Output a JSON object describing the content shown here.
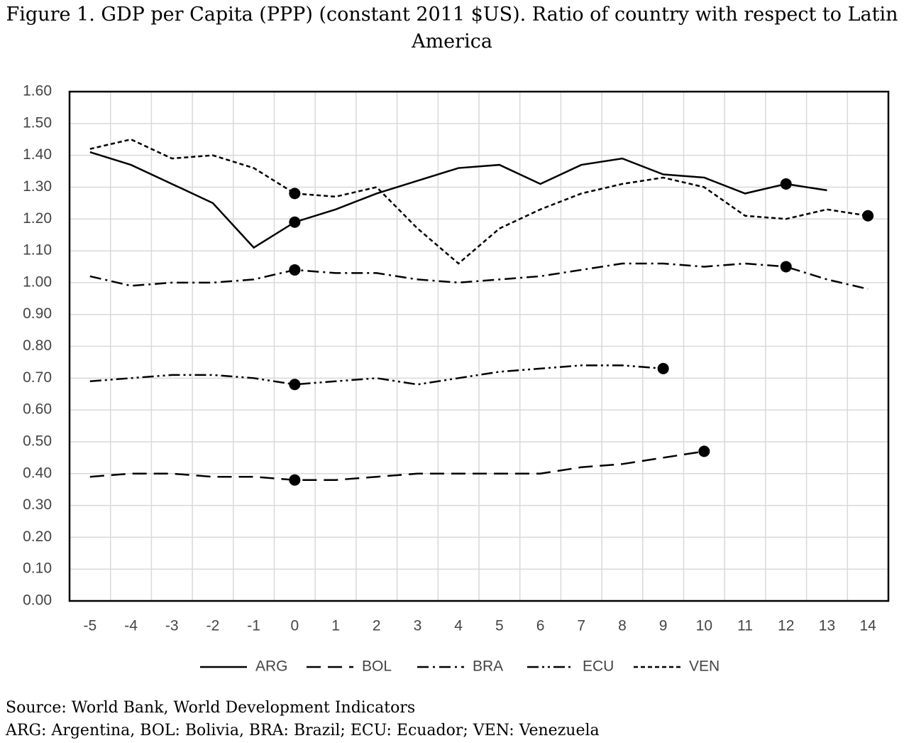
{
  "chart_data": {
    "type": "line",
    "title": "Figure 1. GDP per Capita (PPP) (constant 2011 $US). Ratio of country with respect to Latin America",
    "categories": [
      "-5",
      "-4",
      "-3",
      "-2",
      "-1",
      "0",
      "1",
      "2",
      "3",
      "4",
      "5",
      "6",
      "7",
      "8",
      "9",
      "10",
      "11",
      "12",
      "13",
      "14"
    ],
    "series": [
      {
        "name": "ARG",
        "color": "#000000",
        "dash": "solid",
        "markers": [
          5,
          17
        ],
        "values": [
          1.41,
          1.37,
          1.31,
          1.25,
          1.11,
          1.19,
          1.23,
          1.28,
          1.32,
          1.36,
          1.37,
          1.31,
          1.37,
          1.39,
          1.34,
          1.33,
          1.28,
          1.31,
          1.29,
          null
        ]
      },
      {
        "name": "BOL",
        "color": "#000000",
        "dash": "long-dash",
        "markers": [
          5,
          15
        ],
        "values": [
          0.39,
          0.4,
          0.4,
          0.39,
          0.39,
          0.38,
          0.38,
          0.39,
          0.4,
          0.4,
          0.4,
          0.4,
          0.42,
          0.43,
          0.45,
          0.47,
          null,
          null,
          null,
          null
        ]
      },
      {
        "name": "BRA",
        "color": "#000000",
        "dash": "dash-dot",
        "markers": [
          5,
          17
        ],
        "values": [
          1.02,
          0.99,
          1.0,
          1.0,
          1.01,
          1.04,
          1.03,
          1.03,
          1.01,
          1.0,
          1.01,
          1.02,
          1.04,
          1.06,
          1.06,
          1.05,
          1.06,
          1.05,
          1.01,
          0.98
        ]
      },
      {
        "name": "ECU",
        "color": "#000000",
        "dash": "dash-dot-dot",
        "markers": [
          5,
          14
        ],
        "values": [
          0.69,
          0.7,
          0.71,
          0.71,
          0.7,
          0.68,
          0.69,
          0.7,
          0.68,
          0.7,
          0.72,
          0.73,
          0.74,
          0.74,
          0.73,
          null,
          null,
          null,
          null,
          null
        ]
      },
      {
        "name": "VEN",
        "color": "#000000",
        "dash": "short-dash",
        "markers": [
          5,
          19
        ],
        "values": [
          1.42,
          1.45,
          1.39,
          1.4,
          1.36,
          1.28,
          1.27,
          1.3,
          1.17,
          1.06,
          1.17,
          1.23,
          1.28,
          1.31,
          1.33,
          1.3,
          1.21,
          1.2,
          1.23,
          1.21
        ]
      }
    ],
    "ylim": [
      0,
      1.6
    ],
    "yticks": [
      {
        "value": 0,
        "label": "0.00"
      },
      {
        "value": 0.1,
        "label": "0.10"
      },
      {
        "value": 0.2,
        "label": "0.20"
      },
      {
        "value": 0.3,
        "label": "0.30"
      },
      {
        "value": 0.4,
        "label": "0.40"
      },
      {
        "value": 0.5,
        "label": "0.50"
      },
      {
        "value": 0.6,
        "label": "0.60"
      },
      {
        "value": 0.7,
        "label": "0.70"
      },
      {
        "value": 0.8,
        "label": "0.80"
      },
      {
        "value": 0.9,
        "label": "0.90"
      },
      {
        "value": 1.0,
        "label": "1.00"
      },
      {
        "value": 1.1,
        "label": "1.10"
      },
      {
        "value": 1.2,
        "label": "1.20"
      },
      {
        "value": 1.3,
        "label": "1.30"
      },
      {
        "value": 1.4,
        "label": "1.40"
      },
      {
        "value": 1.5,
        "label": "1.50"
      },
      {
        "value": 1.6,
        "label": "1.60"
      }
    ],
    "grid": true,
    "legend": "bottom",
    "notes": [
      "Source: World Bank, World Development Indicators",
      "ARG: Argentina, BOL: Bolivia, BRA: Brazil; ECU: Ecuador; VEN: Venezuela"
    ]
  }
}
